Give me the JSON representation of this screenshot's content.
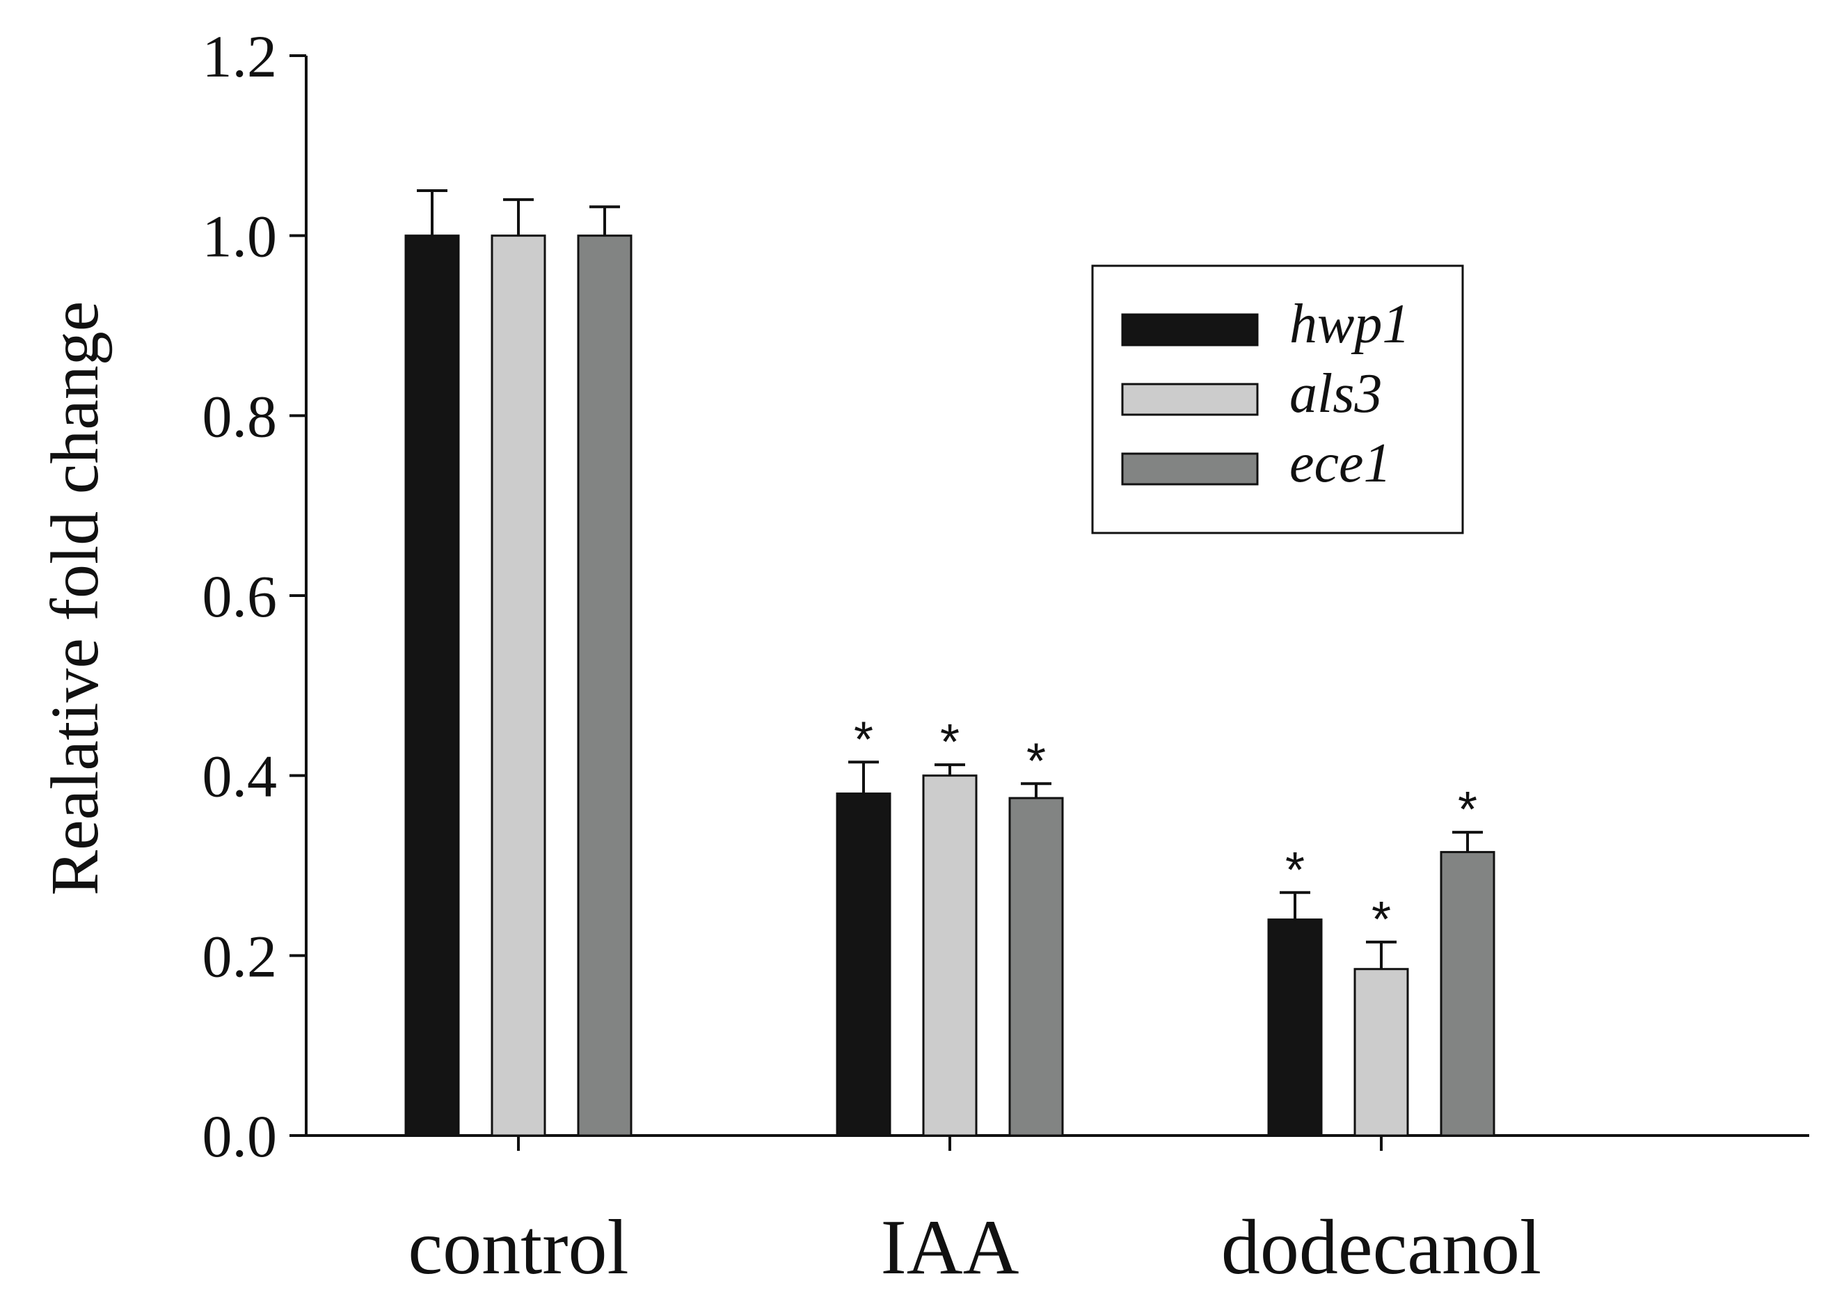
{
  "chart_data": {
    "type": "bar",
    "title": "",
    "xlabel": "",
    "ylabel": "Realative fold change",
    "ylim": [
      0,
      1.2
    ],
    "yticks": [
      "0.0",
      "0.2",
      "0.4",
      "0.6",
      "0.8",
      "1.0",
      "1.2"
    ],
    "categories": [
      "control",
      "IAA",
      "dodecanol"
    ],
    "series": [
      {
        "name": "hwp1",
        "color": "#141414",
        "values": [
          1.0,
          0.38,
          0.24
        ],
        "errors": [
          0.05,
          0.035,
          0.03
        ],
        "significant": [
          false,
          true,
          true
        ]
      },
      {
        "name": "als3",
        "color": "#cccccc",
        "values": [
          1.0,
          0.4,
          0.185
        ],
        "errors": [
          0.04,
          0.012,
          0.03
        ],
        "significant": [
          false,
          true,
          true
        ]
      },
      {
        "name": "ece1",
        "color": "#828483",
        "values": [
          1.0,
          0.375,
          0.315
        ],
        "errors": [
          0.032,
          0.016,
          0.022
        ],
        "significant": [
          false,
          true,
          true
        ]
      }
    ],
    "significance_marker": "*",
    "legend": {
      "position": "top-right"
    },
    "grid": false
  }
}
